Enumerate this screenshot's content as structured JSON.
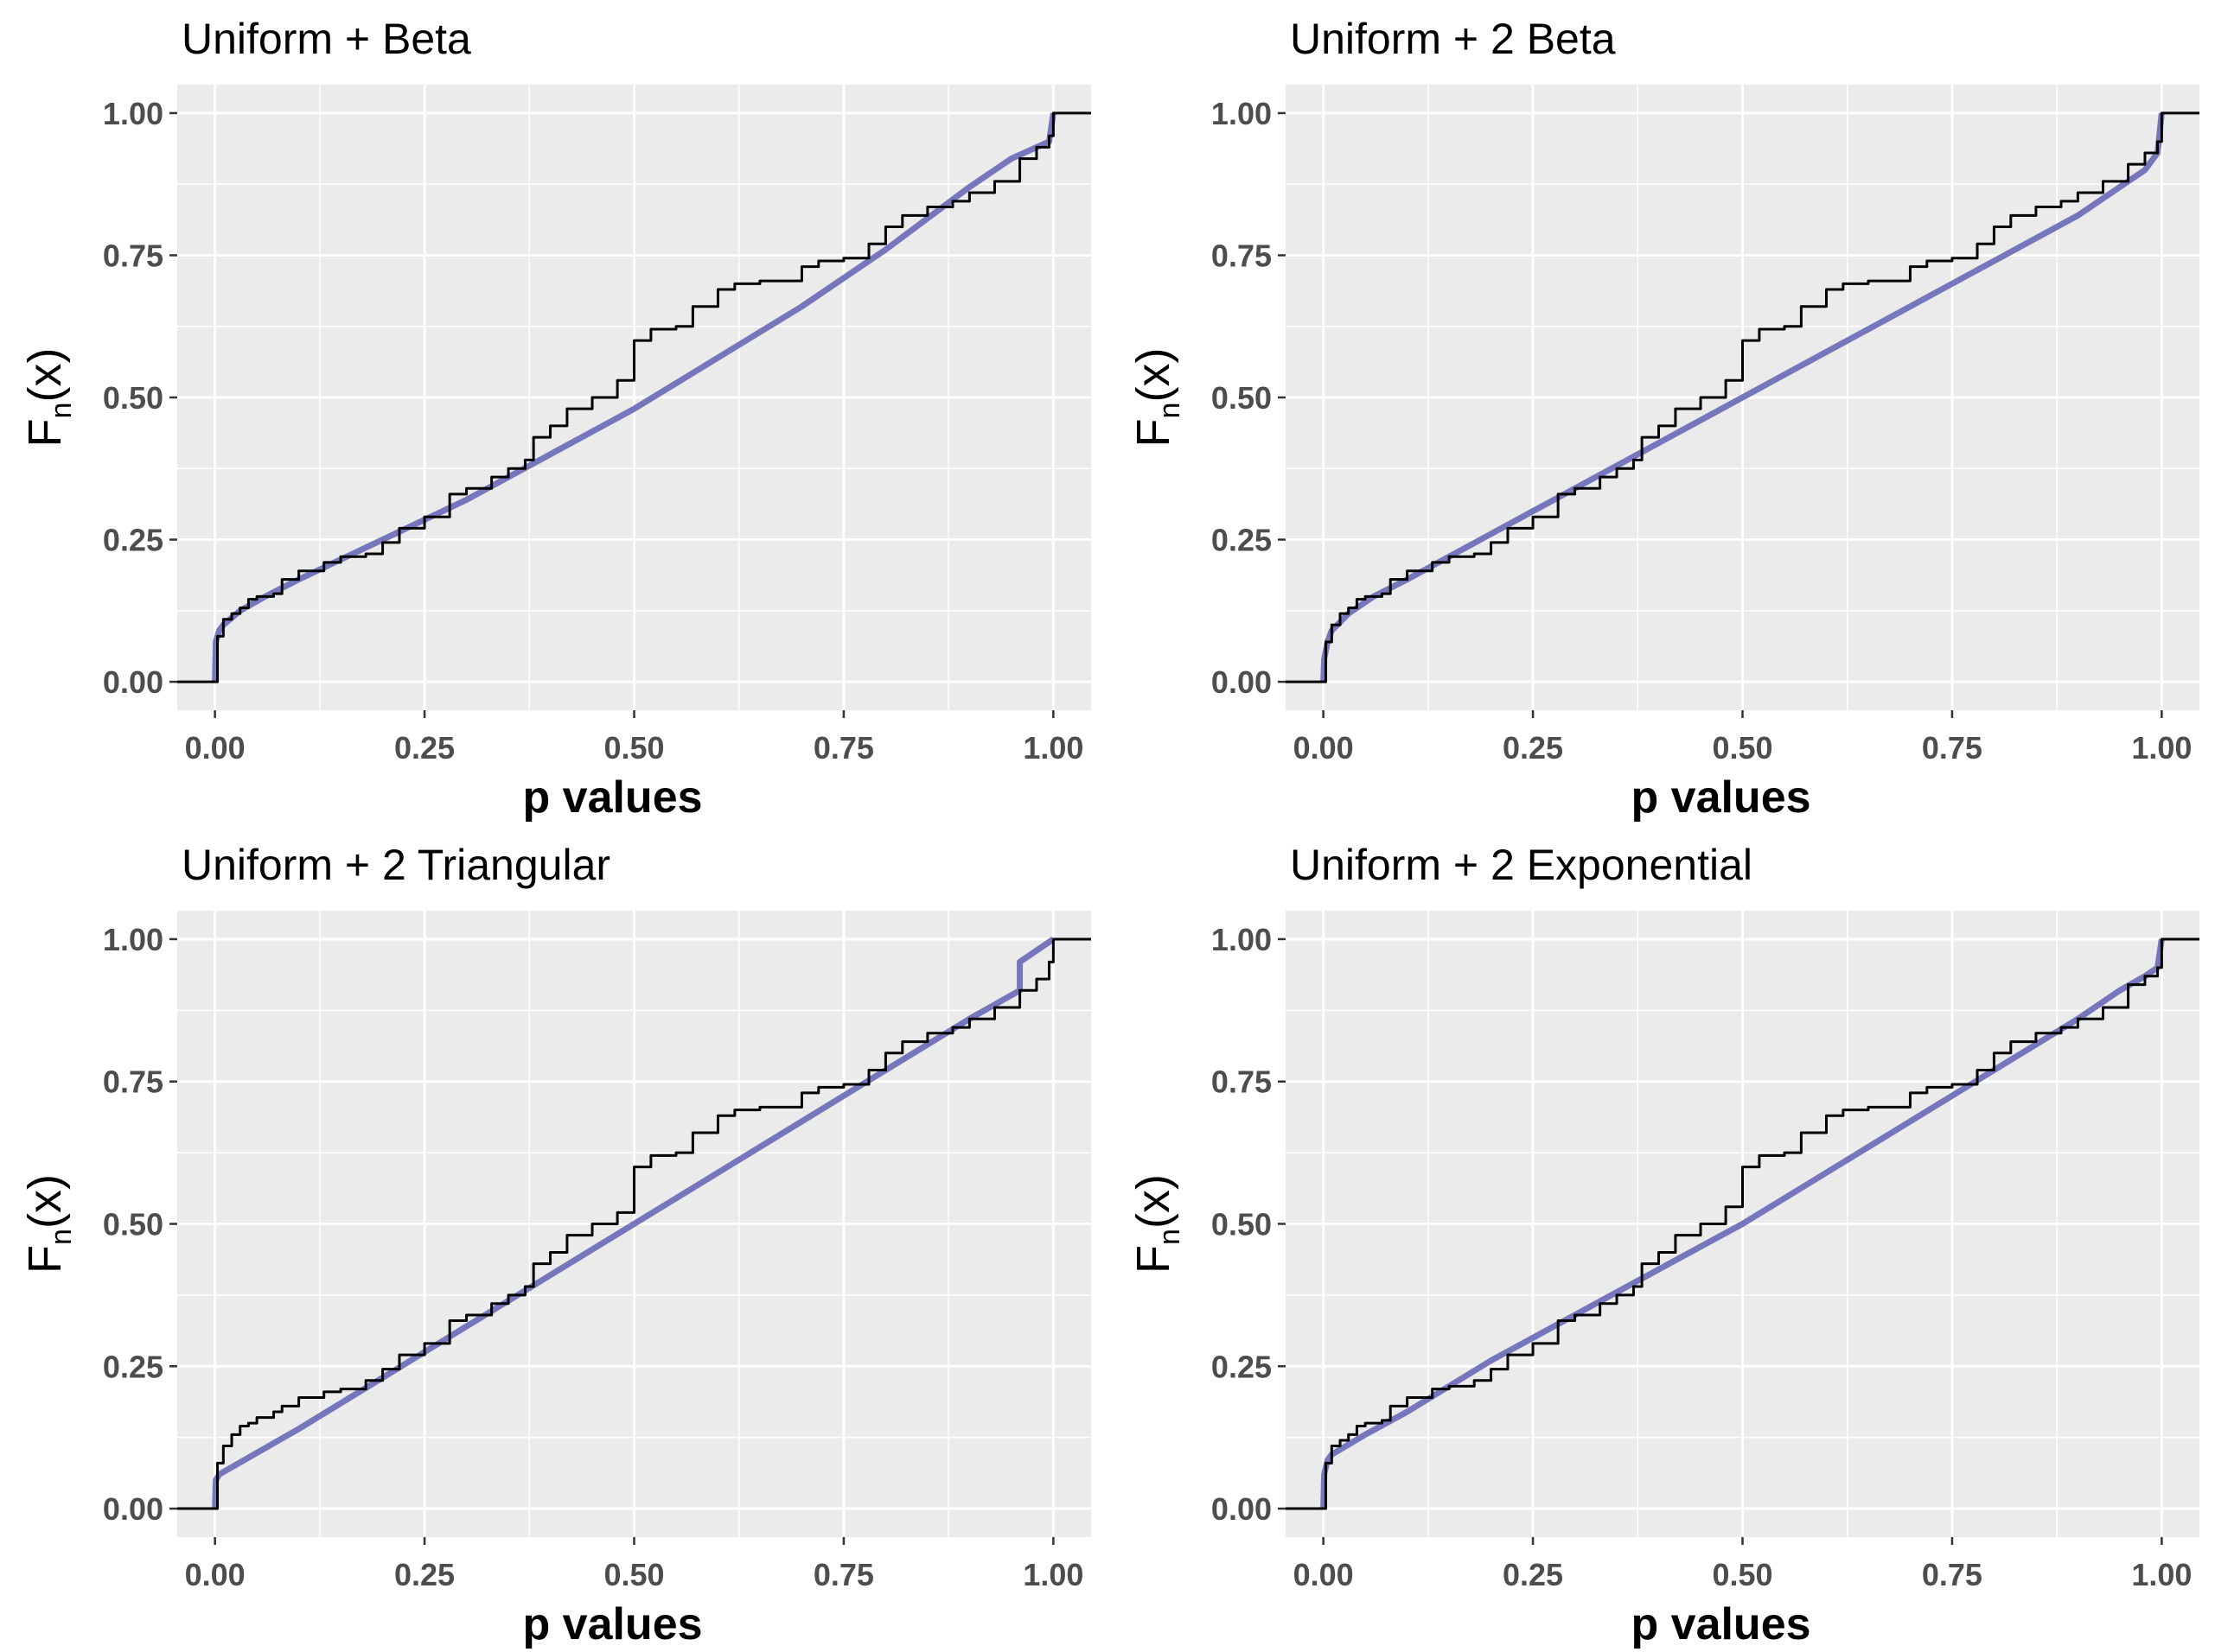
{
  "chart_data": [
    {
      "type": "line",
      "title": "Uniform + Beta",
      "xlabel": "p values",
      "ylabel": {
        "main": "F",
        "sub": "n",
        "tail": "(x)"
      },
      "xlim": [
        -0.045,
        1.045
      ],
      "ylim": [
        -0.05,
        1.05
      ],
      "xticks": [
        "0.00",
        "0.25",
        "0.50",
        "0.75",
        "1.00"
      ],
      "yticks": [
        "0.00",
        "0.25",
        "0.50",
        "0.75",
        "1.00"
      ],
      "grid": true,
      "series": [
        {
          "color": "#000000",
          "x": [
            -0.045,
            0,
            0.003,
            0.01,
            0.02,
            0.03,
            0.04,
            0.05,
            0.07,
            0.08,
            0.1,
            0.13,
            0.15,
            0.18,
            0.2,
            0.22,
            0.25,
            0.28,
            0.3,
            0.33,
            0.35,
            0.37,
            0.38,
            0.4,
            0.42,
            0.45,
            0.48,
            0.5,
            0.5,
            0.52,
            0.55,
            0.57,
            0.6,
            0.62,
            0.65,
            0.7,
            0.72,
            0.75,
            0.78,
            0.8,
            0.82,
            0.85,
            0.88,
            0.9,
            0.93,
            0.96,
            0.98,
            0.995,
            1.0,
            1.045
          ],
          "y": [
            0.0,
            0.0,
            0.08,
            0.11,
            0.12,
            0.13,
            0.145,
            0.15,
            0.155,
            0.18,
            0.195,
            0.21,
            0.22,
            0.225,
            0.245,
            0.27,
            0.29,
            0.33,
            0.34,
            0.36,
            0.375,
            0.39,
            0.43,
            0.45,
            0.48,
            0.5,
            0.53,
            0.56,
            0.6,
            0.62,
            0.625,
            0.66,
            0.69,
            0.7,
            0.705,
            0.73,
            0.74,
            0.745,
            0.77,
            0.8,
            0.82,
            0.835,
            0.845,
            0.86,
            0.88,
            0.92,
            0.94,
            0.96,
            1.0,
            1.0
          ]
        },
        {
          "color": "#7070bb",
          "x": [
            0,
            0.001,
            0.005,
            0.01,
            0.03,
            0.06,
            0.1,
            0.2,
            0.3,
            0.4,
            0.5,
            0.6,
            0.7,
            0.8,
            0.9,
            0.95,
            0.98,
            0.995,
            1.0
          ],
          "y": [
            0.0,
            0.07,
            0.09,
            0.1,
            0.125,
            0.15,
            0.18,
            0.25,
            0.32,
            0.4,
            0.48,
            0.57,
            0.66,
            0.76,
            0.87,
            0.92,
            0.94,
            0.95,
            1.0
          ]
        }
      ]
    },
    {
      "type": "line",
      "title": "Uniform + 2 Beta",
      "xlabel": "p values",
      "ylabel": {
        "main": "F",
        "sub": "n",
        "tail": "(x)"
      },
      "xlim": [
        -0.045,
        1.045
      ],
      "ylim": [
        -0.05,
        1.05
      ],
      "xticks": [
        "0.00",
        "0.25",
        "0.50",
        "0.75",
        "1.00"
      ],
      "yticks": [
        "0.00",
        "0.25",
        "0.50",
        "0.75",
        "1.00"
      ],
      "grid": true,
      "series": [
        {
          "color": "#000000",
          "x": [
            -0.045,
            0,
            0.003,
            0.01,
            0.02,
            0.03,
            0.04,
            0.05,
            0.07,
            0.08,
            0.1,
            0.13,
            0.15,
            0.18,
            0.2,
            0.22,
            0.25,
            0.28,
            0.3,
            0.33,
            0.35,
            0.37,
            0.38,
            0.4,
            0.42,
            0.45,
            0.48,
            0.5,
            0.5,
            0.52,
            0.55,
            0.57,
            0.6,
            0.62,
            0.65,
            0.7,
            0.72,
            0.75,
            0.78,
            0.8,
            0.82,
            0.85,
            0.88,
            0.9,
            0.93,
            0.96,
            0.98,
            0.995,
            1.0,
            1.045
          ],
          "y": [
            0.0,
            0.0,
            0.07,
            0.1,
            0.12,
            0.13,
            0.145,
            0.15,
            0.155,
            0.18,
            0.195,
            0.21,
            0.22,
            0.225,
            0.245,
            0.27,
            0.29,
            0.33,
            0.34,
            0.36,
            0.375,
            0.39,
            0.43,
            0.45,
            0.48,
            0.5,
            0.53,
            0.56,
            0.6,
            0.62,
            0.625,
            0.66,
            0.69,
            0.7,
            0.705,
            0.73,
            0.74,
            0.745,
            0.77,
            0.8,
            0.82,
            0.835,
            0.845,
            0.86,
            0.88,
            0.91,
            0.93,
            0.95,
            1.0,
            1.0
          ]
        },
        {
          "color": "#7070bb",
          "x": [
            0,
            0.001,
            0.005,
            0.01,
            0.03,
            0.06,
            0.1,
            0.2,
            0.3,
            0.4,
            0.5,
            0.6,
            0.7,
            0.8,
            0.9,
            0.95,
            0.98,
            0.995,
            1.0
          ],
          "y": [
            0.0,
            0.04,
            0.07,
            0.09,
            0.12,
            0.15,
            0.18,
            0.26,
            0.34,
            0.42,
            0.5,
            0.58,
            0.66,
            0.74,
            0.82,
            0.87,
            0.9,
            0.93,
            1.0
          ]
        }
      ]
    },
    {
      "type": "line",
      "title": "Uniform + 2 Triangular",
      "xlabel": "p values",
      "ylabel": {
        "main": "F",
        "sub": "n",
        "tail": "(x)"
      },
      "xlim": [
        -0.045,
        1.045
      ],
      "ylim": [
        -0.05,
        1.05
      ],
      "xticks": [
        "0.00",
        "0.25",
        "0.50",
        "0.75",
        "1.00"
      ],
      "yticks": [
        "0.00",
        "0.25",
        "0.50",
        "0.75",
        "1.00"
      ],
      "grid": true,
      "series": [
        {
          "color": "#000000",
          "x": [
            -0.045,
            0,
            0.003,
            0.01,
            0.02,
            0.03,
            0.04,
            0.05,
            0.07,
            0.08,
            0.1,
            0.13,
            0.15,
            0.18,
            0.2,
            0.22,
            0.25,
            0.28,
            0.3,
            0.33,
            0.35,
            0.37,
            0.38,
            0.4,
            0.42,
            0.45,
            0.48,
            0.5,
            0.5,
            0.52,
            0.55,
            0.57,
            0.6,
            0.62,
            0.65,
            0.7,
            0.72,
            0.75,
            0.78,
            0.8,
            0.82,
            0.85,
            0.88,
            0.9,
            0.93,
            0.96,
            0.98,
            0.995,
            1.0,
            1.045
          ],
          "y": [
            0.0,
            0.0,
            0.08,
            0.11,
            0.13,
            0.145,
            0.15,
            0.16,
            0.17,
            0.18,
            0.195,
            0.205,
            0.21,
            0.225,
            0.245,
            0.27,
            0.29,
            0.33,
            0.34,
            0.36,
            0.375,
            0.39,
            0.43,
            0.45,
            0.48,
            0.5,
            0.52,
            0.55,
            0.6,
            0.62,
            0.625,
            0.66,
            0.69,
            0.7,
            0.705,
            0.73,
            0.74,
            0.745,
            0.77,
            0.8,
            0.82,
            0.835,
            0.845,
            0.86,
            0.88,
            0.91,
            0.93,
            0.96,
            1.0,
            1.0
          ]
        },
        {
          "color": "#7070bb",
          "x": [
            0,
            0.001,
            0.005,
            0.1,
            0.2,
            0.3,
            0.4,
            0.5,
            0.6,
            0.7,
            0.8,
            0.9,
            0.96,
            0.96,
            1.0
          ],
          "y": [
            0.0,
            0.05,
            0.06,
            0.14,
            0.23,
            0.32,
            0.41,
            0.5,
            0.59,
            0.68,
            0.77,
            0.86,
            0.91,
            0.96,
            1.0
          ]
        }
      ]
    },
    {
      "type": "line",
      "title": "Uniform + 2 Exponential",
      "xlabel": "p values",
      "ylabel": {
        "main": "F",
        "sub": "n",
        "tail": "(x)"
      },
      "xlim": [
        -0.045,
        1.045
      ],
      "ylim": [
        -0.05,
        1.05
      ],
      "xticks": [
        "0.00",
        "0.25",
        "0.50",
        "0.75",
        "1.00"
      ],
      "yticks": [
        "0.00",
        "0.25",
        "0.50",
        "0.75",
        "1.00"
      ],
      "grid": true,
      "series": [
        {
          "color": "#000000",
          "x": [
            -0.045,
            0,
            0.003,
            0.01,
            0.02,
            0.03,
            0.04,
            0.05,
            0.07,
            0.08,
            0.1,
            0.13,
            0.15,
            0.18,
            0.2,
            0.22,
            0.25,
            0.28,
            0.3,
            0.33,
            0.35,
            0.37,
            0.38,
            0.4,
            0.42,
            0.45,
            0.48,
            0.5,
            0.5,
            0.52,
            0.55,
            0.57,
            0.6,
            0.62,
            0.65,
            0.7,
            0.72,
            0.75,
            0.78,
            0.8,
            0.82,
            0.85,
            0.88,
            0.9,
            0.93,
            0.96,
            0.98,
            0.995,
            1.0,
            1.045
          ],
          "y": [
            0.0,
            0.0,
            0.08,
            0.11,
            0.12,
            0.13,
            0.145,
            0.15,
            0.155,
            0.18,
            0.195,
            0.21,
            0.215,
            0.225,
            0.245,
            0.27,
            0.29,
            0.33,
            0.34,
            0.36,
            0.375,
            0.39,
            0.43,
            0.45,
            0.48,
            0.5,
            0.53,
            0.56,
            0.6,
            0.62,
            0.625,
            0.66,
            0.69,
            0.7,
            0.705,
            0.73,
            0.74,
            0.745,
            0.77,
            0.8,
            0.82,
            0.835,
            0.845,
            0.86,
            0.88,
            0.92,
            0.935,
            0.95,
            1.0,
            1.0
          ]
        },
        {
          "color": "#7070bb",
          "x": [
            0,
            0.001,
            0.005,
            0.01,
            0.05,
            0.1,
            0.2,
            0.3,
            0.4,
            0.5,
            0.6,
            0.7,
            0.8,
            0.9,
            0.95,
            0.98,
            0.995,
            1.0
          ],
          "y": [
            0.0,
            0.06,
            0.085,
            0.095,
            0.13,
            0.17,
            0.26,
            0.34,
            0.42,
            0.5,
            0.59,
            0.68,
            0.77,
            0.86,
            0.91,
            0.935,
            0.95,
            1.0
          ]
        }
      ]
    }
  ]
}
